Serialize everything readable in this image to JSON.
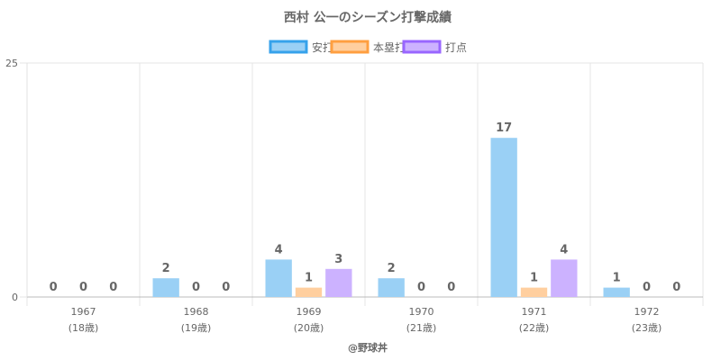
{
  "chart_data": {
    "type": "bar",
    "title": "西村 公一のシーズン打撃成績",
    "categories": [
      "1967",
      "1968",
      "1969",
      "1970",
      "1971",
      "1972"
    ],
    "category_sublabels": [
      "(18歳)",
      "(19歳)",
      "(20歳)",
      "(21歳)",
      "(22歳)",
      "(23歳)"
    ],
    "series": [
      {
        "name": "安打",
        "values": [
          0,
          2,
          4,
          2,
          17,
          1
        ],
        "color": "#9ad0f5",
        "border": "#36a2eb"
      },
      {
        "name": "本塁打",
        "values": [
          0,
          0,
          1,
          0,
          1,
          0
        ],
        "color": "#ffcf9f",
        "border": "#ff9f40"
      },
      {
        "name": "打点",
        "values": [
          0,
          0,
          3,
          0,
          4,
          0
        ],
        "color": "#ccb2ff",
        "border": "#9966ff"
      }
    ],
    "y_ticks": [
      "0",
      "25"
    ],
    "ylim": [
      0,
      25
    ],
    "legend_position": "top",
    "grid": true,
    "credit": "@野球丼"
  }
}
